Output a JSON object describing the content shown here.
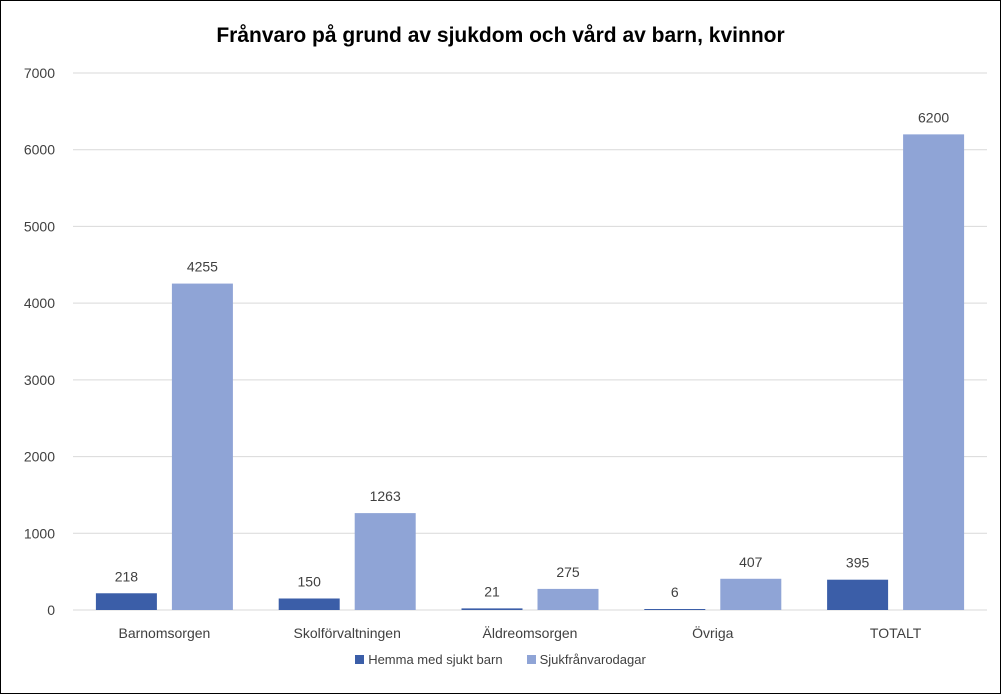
{
  "chart_data": {
    "type": "bar",
    "title": "Frånvaro på grund av sjukdom och vård av barn, kvinnor",
    "categories": [
      "Barnomsorgen",
      "Skolförvaltningen",
      "Äldreomsorgen",
      "Övriga",
      "TOTALT"
    ],
    "series": [
      {
        "name": "Hemma med sjukt barn",
        "values": [
          218,
          150,
          21,
          6,
          395
        ],
        "color": "#3b5ea8"
      },
      {
        "name": "Sjukfrånvarodagar",
        "values": [
          4255,
          1263,
          275,
          407,
          6200
        ],
        "color": "#8fa4d6"
      }
    ],
    "ylim": [
      0,
      7000
    ],
    "yticks": [
      "0",
      "1000",
      "2000",
      "3000",
      "4000",
      "5000",
      "6000",
      "7000"
    ],
    "grid": true,
    "legend": "bottom",
    "gridColor": "#d9d9d9"
  }
}
